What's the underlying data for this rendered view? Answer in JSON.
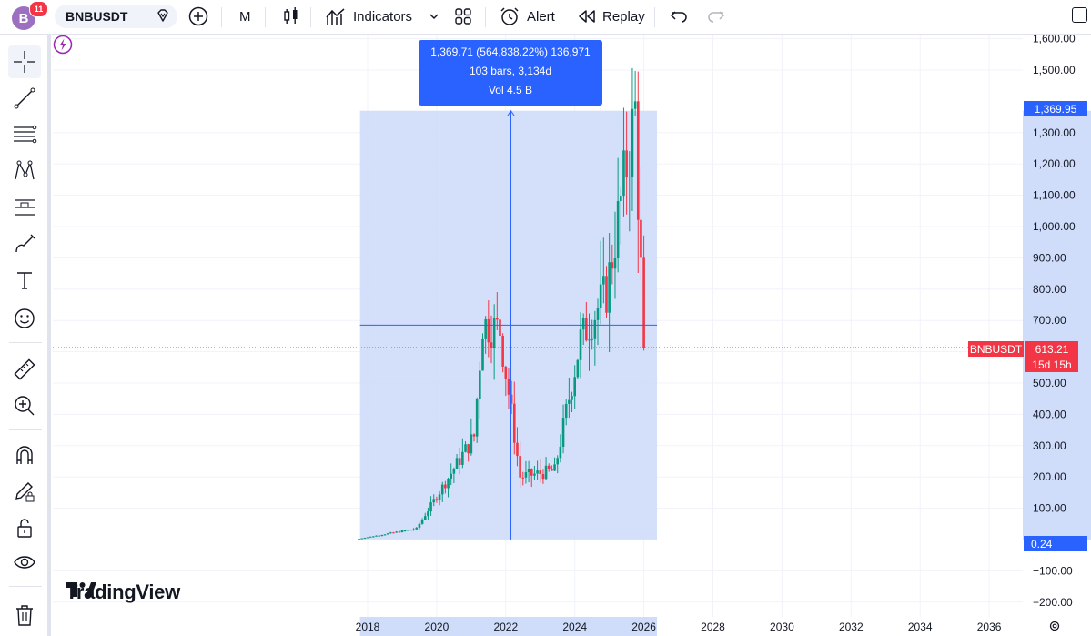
{
  "header": {
    "avatar_letter": "B",
    "notification_count": "11",
    "symbol": "BNBUSDT",
    "interval": "M",
    "indicators_label": "Indicators",
    "alert_label": "Alert",
    "replay_label": "Replay"
  },
  "left_toolbar": {
    "tools": [
      "crosshair-icon",
      "trend-line-icon",
      "fib-retracement-icon",
      "pattern-icon",
      "long-position-icon",
      "brush-icon",
      "text-icon",
      "emoji-icon",
      "ruler-icon",
      "zoom-in-icon",
      "magnet-icon",
      "lock-drawing-icon",
      "unlock-icon",
      "eye-icon",
      "trash-icon"
    ]
  },
  "measure": {
    "line1": "1,369.71 (564,838.22%) 136,971",
    "line2": "103 bars, 3,134d",
    "line3": "Vol 4.5 B"
  },
  "price_axis": {
    "ticks": [
      "1,600.00",
      "1,500.00",
      "1,300.00",
      "1,200.00",
      "1,100.00",
      "1,000.00",
      "900.00",
      "800.00",
      "700.00",
      "600.00",
      "500.00",
      "400.00",
      "300.00",
      "200.00",
      "100.00",
      "−100.00",
      "−200.00"
    ],
    "measure_top_label": "1,369.95",
    "measure_bottom_label": "0.24",
    "symbol_label": "BNBUSDT",
    "last_price": "613.21",
    "countdown": "15d 15h"
  },
  "time_axis": {
    "labels": [
      "2018",
      "2020",
      "2022",
      "2024",
      "2026",
      "2028",
      "2030",
      "2032",
      "2034",
      "2036"
    ]
  },
  "logo_text": "TradingView",
  "colors": {
    "up": "#089981",
    "down": "#f23645",
    "accent": "#2962ff",
    "measure_fill": "#cfdcfa"
  },
  "chart_data": {
    "type": "candlestick",
    "symbol": "BNBUSDT",
    "interval": "M",
    "ylim": [
      -200,
      1600
    ],
    "xlim": [
      2017.5,
      2036.5
    ],
    "last_price": 613.21,
    "measure_range": {
      "low": 0.24,
      "high": 1369.95
    },
    "key_points": [
      {
        "date": "2017-09",
        "price": 1
      },
      {
        "date": "2019-06",
        "price": 35
      },
      {
        "date": "2021-02",
        "price": 330
      },
      {
        "date": "2021-05",
        "price": 690
      },
      {
        "date": "2021-11",
        "price": 670
      },
      {
        "date": "2022-06",
        "price": 200
      },
      {
        "date": "2023-06",
        "price": 220
      },
      {
        "date": "2024-03",
        "price": 640
      },
      {
        "date": "2024-12",
        "price": 790
      },
      {
        "date": "2025-10",
        "price": 1369.95
      },
      {
        "date": "2025-11",
        "price": 1100
      },
      {
        "date": "2026-01",
        "price": 613.21
      }
    ]
  }
}
